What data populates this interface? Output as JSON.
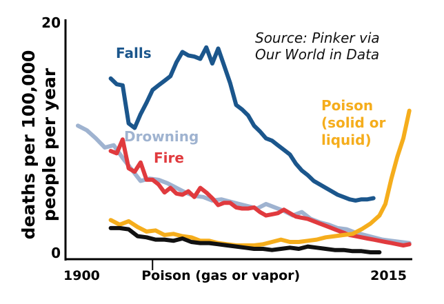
{
  "chart_data": {
    "type": "line",
    "title": "",
    "source_lines": [
      "Source: Pinker via",
      "Our World in Data"
    ],
    "ylabel_lines": [
      "deaths per 100,000",
      "people per year"
    ],
    "xlabel": "",
    "xlim": [
      1900,
      2015
    ],
    "ylim": [
      0,
      20
    ],
    "y_ticks": [
      {
        "value": 20,
        "label": "20"
      },
      {
        "value": 0,
        "label": "0"
      }
    ],
    "x_ticks": [
      {
        "value": 1900,
        "label": "1900"
      },
      {
        "value": 1928,
        "label": "Poison (gas or vapor)"
      },
      {
        "value": 2015,
        "label": "2015"
      }
    ],
    "grid": false,
    "legend": "inline labels",
    "series": [
      {
        "name": "Drowning",
        "label_lines": [
          "Drowning"
        ],
        "color": "#9fb3d0",
        "x": [
          1903,
          1906,
          1909,
          1912,
          1915,
          1918,
          1921,
          1924,
          1927,
          1930,
          1933,
          1936,
          1939,
          1942,
          1945,
          1948,
          1951,
          1954,
          1957,
          1960,
          1963,
          1966,
          1969,
          1972,
          1975,
          1978,
          1981,
          1984,
          1987,
          1990,
          1993,
          1996,
          1999,
          2002,
          2005,
          2008,
          2011,
          2014
        ],
        "values": [
          11,
          10.6,
          9.9,
          9.1,
          9.3,
          8.2,
          7.2,
          6.2,
          6.4,
          6.3,
          6.0,
          5.6,
          5.2,
          4.9,
          4.8,
          4.5,
          4.6,
          4.4,
          4.2,
          4.0,
          3.8,
          4.2,
          3.9,
          3.6,
          3.2,
          3.5,
          2.9,
          2.6,
          2.4,
          2.1,
          2.0,
          1.7,
          1.5,
          1.3,
          1.1,
          1.0,
          0.9,
          0.8
        ]
      },
      {
        "name": "Falls",
        "label_lines": [
          "Falls"
        ],
        "color": "#1b568c",
        "x": [
          1914,
          1916,
          1918,
          1920,
          1922,
          1924,
          1926,
          1928,
          1930,
          1932,
          1934,
          1936,
          1938,
          1940,
          1942,
          1944,
          1946,
          1948,
          1950,
          1952,
          1954,
          1956,
          1958,
          1960,
          1962,
          1964,
          1966,
          1968,
          1970,
          1972,
          1974,
          1976,
          1978,
          1980,
          1982,
          1984,
          1986,
          1988,
          1990,
          1992,
          1994,
          1996,
          1998,
          2000,
          2002
        ],
        "values": [
          15.1,
          14.6,
          14.5,
          11.2,
          10.8,
          12.0,
          13.0,
          14.1,
          14.5,
          14.9,
          15.3,
          16.5,
          17.4,
          17.1,
          17.0,
          16.8,
          17.8,
          16.4,
          17.7,
          16.2,
          14.7,
          12.8,
          12.4,
          11.9,
          11.0,
          10.5,
          9.9,
          9.7,
          9.3,
          8.9,
          8.5,
          7.7,
          7.1,
          6.7,
          6.2,
          5.9,
          5.6,
          5.3,
          5.0,
          4.8,
          4.6,
          4.5,
          4.6,
          4.6,
          4.7
        ]
      },
      {
        "name": "Fire",
        "label_lines": [
          "Fire"
        ],
        "color": "#e03a3e",
        "x": [
          1914,
          1916,
          1918,
          1920,
          1922,
          1924,
          1926,
          1928,
          1930,
          1932,
          1934,
          1936,
          1938,
          1940,
          1942,
          1944,
          1946,
          1948,
          1950,
          1952,
          1954,
          1956,
          1958,
          1960,
          1962,
          1964,
          1966,
          1968,
          1970,
          1972,
          1974,
          1976,
          1978,
          1980,
          1982,
          1984,
          1986,
          1988,
          1990,
          1992,
          1994,
          1996,
          1998,
          2000,
          2002,
          2004,
          2006,
          2008,
          2010,
          2012,
          2014
        ],
        "values": [
          8.8,
          8.6,
          9.8,
          7.3,
          7.0,
          7.8,
          6.3,
          6.3,
          5.9,
          5.2,
          5.6,
          5.1,
          5.0,
          5.3,
          4.8,
          5.6,
          5.2,
          4.7,
          4.1,
          4.3,
          4.3,
          3.9,
          3.8,
          3.8,
          3.9,
          3.5,
          3.2,
          3.3,
          3.4,
          3.7,
          3.4,
          3.1,
          3.0,
          2.9,
          2.7,
          2.5,
          2.3,
          2.1,
          1.9,
          1.7,
          1.5,
          1.4,
          1.3,
          1.2,
          1.1,
          1.0,
          0.9,
          0.8,
          0.7,
          0.6,
          0.7
        ]
      },
      {
        "name": "Poison (solid or liquid)",
        "label_lines": [
          "Poison",
          "(solid or",
          "liquid)"
        ],
        "color": "#f5ad1c",
        "x": [
          1914,
          1917,
          1920,
          1923,
          1926,
          1929,
          1932,
          1935,
          1938,
          1941,
          1944,
          1947,
          1950,
          1953,
          1956,
          1959,
          1962,
          1965,
          1968,
          1971,
          1974,
          1977,
          1980,
          1983,
          1986,
          1989,
          1992,
          1995,
          1998,
          2001,
          2004,
          2006,
          2008,
          2010,
          2012,
          2014
        ],
        "values": [
          2.8,
          2.4,
          2.7,
          2.2,
          1.8,
          1.9,
          1.5,
          1.6,
          1.4,
          1.3,
          1.0,
          1.0,
          0.8,
          0.7,
          0.6,
          0.6,
          0.6,
          0.7,
          0.9,
          1.1,
          0.9,
          0.9,
          1.0,
          1.1,
          1.3,
          1.4,
          1.5,
          1.6,
          2.0,
          2.5,
          3.2,
          4.2,
          6.4,
          8.3,
          9.9,
          12.3
        ]
      },
      {
        "name": "Poison (gas or vapor)",
        "label_lines": [],
        "color": "#111111",
        "x": [
          1914,
          1917,
          1920,
          1923,
          1926,
          1929,
          1932,
          1935,
          1938,
          1941,
          1944,
          1947,
          1950,
          1953,
          1956,
          1959,
          1962,
          1965,
          1968,
          1971,
          1974,
          1977,
          1980,
          1983,
          1986,
          1989,
          1992,
          1995,
          1998,
          2001,
          2004
        ],
        "values": [
          2.1,
          2.1,
          2.0,
          1.4,
          1.3,
          1.1,
          1.1,
          1.0,
          1.2,
          0.9,
          0.8,
          0.8,
          0.7,
          0.6,
          0.5,
          0.4,
          0.3,
          0.3,
          0.2,
          0.3,
          0.4,
          0.3,
          0.5,
          0.4,
          0.3,
          0.2,
          0.2,
          0.1,
          0.1,
          0.0,
          0.0
        ]
      }
    ]
  }
}
